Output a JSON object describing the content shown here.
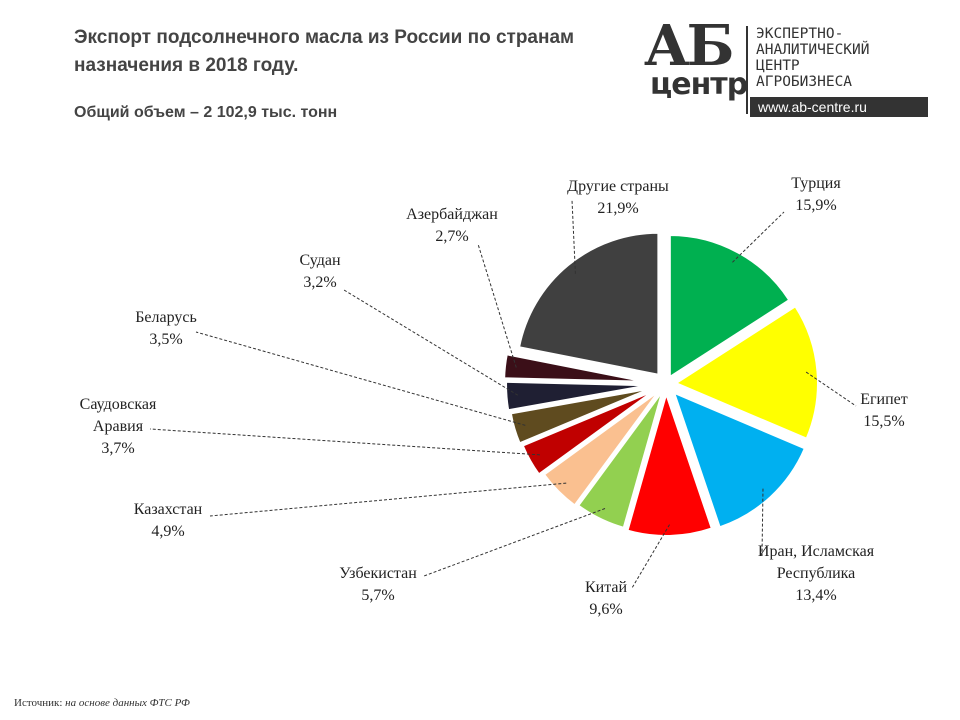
{
  "title": "Экспорт подсолнечного масла из России по странам назначения в 2018 году.",
  "subtitle": "Общий объем  – 2 102,9 тыс. тонн",
  "logo": {
    "letters": "АБ",
    "word": "центр",
    "lines": [
      "ЭКСПЕРТНО-",
      "АНАЛИТИЧЕСКИЙ",
      "ЦЕНТР",
      "АГРОБИЗНЕСА"
    ],
    "url": "www.ab-centre.ru"
  },
  "source": {
    "label": "Источник:",
    "text": "на основе данных ФТС РФ"
  },
  "chart_data": {
    "type": "pie",
    "title": "Экспорт подсолнечного масла из России по странам назначения в 2018 году.",
    "subtitle": "Общий объем  – 2 102,9 тыс. тонн",
    "start": "12 o'clock, clockwise",
    "exploded": true,
    "slices": [
      {
        "label": [
          "Турция"
        ],
        "value_text": "15,9%",
        "value": 15.9,
        "color": "#00b050"
      },
      {
        "label": [
          "Египет"
        ],
        "value_text": "15,5%",
        "value": 15.5,
        "color": "#ffff00"
      },
      {
        "label": [
          "Иран, Исламская",
          "Республика"
        ],
        "value_text": "13,4%",
        "value": 13.4,
        "color": "#00b0f0"
      },
      {
        "label": [
          "Китай"
        ],
        "value_text": "9,6%",
        "value": 9.6,
        "color": "#ff0000"
      },
      {
        "label": [
          "Узбекистан"
        ],
        "value_text": "5,7%",
        "value": 5.7,
        "color": "#92d050"
      },
      {
        "label": [
          "Казахстан"
        ],
        "value_text": "4,9%",
        "value": 4.9,
        "color": "#fac090"
      },
      {
        "label": [
          "Саудовская",
          "Аравия"
        ],
        "value_text": "3,7%",
        "value": 3.7,
        "color": "#c00000"
      },
      {
        "label": [
          "Беларусь"
        ],
        "value_text": "3,5%",
        "value": 3.5,
        "color": "#5f4b1f"
      },
      {
        "label": [
          "Судан"
        ],
        "value_text": "3,2%",
        "value": 3.2,
        "color": "#1f1f33"
      },
      {
        "label": [
          "Азербайджан"
        ],
        "value_text": "2,7%",
        "value": 2.7,
        "color": "#3b0f18"
      },
      {
        "label": [
          "Другие страны"
        ],
        "value_text": "21,9%",
        "value": 21.9,
        "color": "#404040"
      }
    ]
  }
}
